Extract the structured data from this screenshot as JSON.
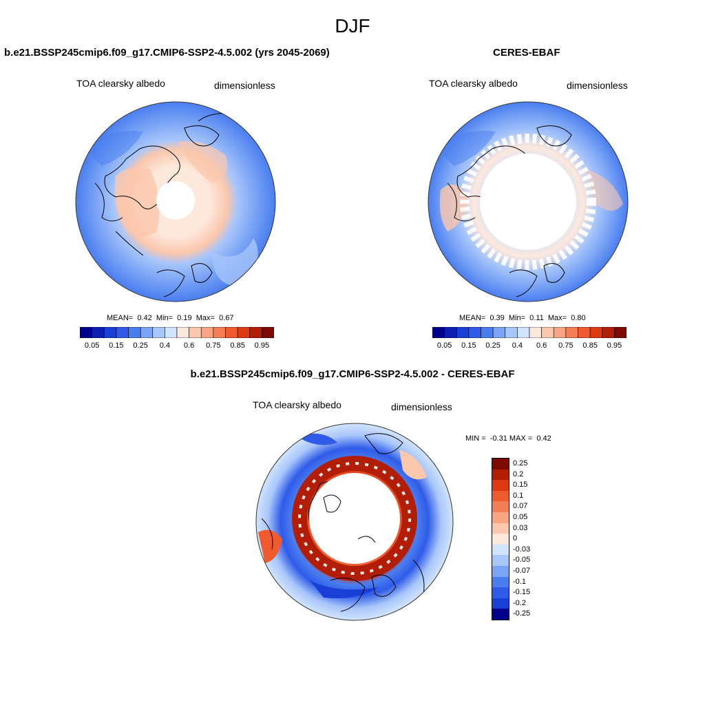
{
  "season": "DJF",
  "panels": [
    {
      "title": "b.e21.BSSP245cmip6.f09_g17.CMIP6-SSP2-4.5.002 (yrs 2045-2069)",
      "variable": "TOA clearsky albedo",
      "units": "dimensionless",
      "stats": {
        "mean_label": "MEAN=",
        "mean": "0.42",
        "min_label": "Min=",
        "min": "0.19",
        "max_label": "Max=",
        "max": "0.67"
      }
    },
    {
      "title": "CERES-EBAF",
      "variable": "TOA clearsky albedo",
      "units": "dimensionless",
      "stats": {
        "mean_label": "MEAN=",
        "mean": "0.39",
        "min_label": "Min=",
        "min": "0.11",
        "max_label": "Max=",
        "max": "0.80"
      }
    }
  ],
  "diff": {
    "title": "b.e21.BSSP245cmip6.f09_g17.CMIP6-SSP2-4.5.002 - CERES-EBAF",
    "variable": "TOA clearsky albedo",
    "units": "dimensionless",
    "min_label": "MIN =",
    "min": "-0.31",
    "max_label": "MAX =",
    "max": "0.42"
  },
  "colorbar": {
    "labels": [
      "0.05",
      "0.15",
      "0.25",
      "0.4",
      "0.6",
      "0.75",
      "0.85",
      "0.95"
    ],
    "colors": [
      "#00008b",
      "#0a1fb0",
      "#1a3fd6",
      "#2f5be8",
      "#4a7ef0",
      "#7aa4f5",
      "#a8c6fa",
      "#d2e4fd",
      "#fde8dc",
      "#fbc7ad",
      "#f7a582",
      "#f47e55",
      "#ef5a2e",
      "#dd3a14",
      "#b21d06",
      "#7c0a00"
    ]
  },
  "diff_colorbar": {
    "labels": [
      "0.25",
      "0.2",
      "0.15",
      "0.1",
      "0.07",
      "0.05",
      "0.03",
      "0",
      "-0.03",
      "-0.05",
      "-0.07",
      "-0.1",
      "-0.15",
      "-0.2",
      "-0.25"
    ],
    "colors": [
      "#7c0a00",
      "#b21d06",
      "#dd3a14",
      "#ef5a2e",
      "#f47e55",
      "#f7a582",
      "#fbc7ad",
      "#fde8dc",
      "#d2e4fd",
      "#a8c6fa",
      "#7aa4f5",
      "#4a7ef0",
      "#2f5be8",
      "#1a3fd6",
      "#00008b"
    ]
  }
}
